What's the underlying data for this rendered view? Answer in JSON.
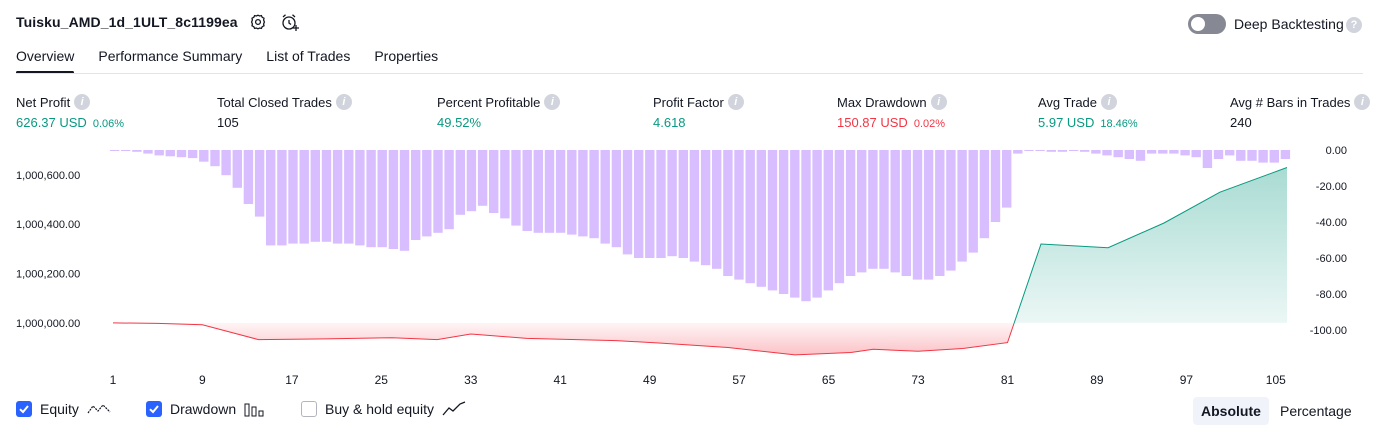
{
  "header": {
    "title": "Tuisku_AMD_1d_1ULT_8c1199ea",
    "settings_icon": "gear-icon",
    "alert_icon": "add-alert-clock-icon",
    "deep_backtesting_label": "Deep Backtesting",
    "deep_backtesting_enabled": false
  },
  "tabs": [
    {
      "label": "Overview",
      "active": true
    },
    {
      "label": "Performance Summary",
      "active": false
    },
    {
      "label": "List of Trades",
      "active": false
    },
    {
      "label": "Properties",
      "active": false
    }
  ],
  "metrics": [
    {
      "label": "Net Profit",
      "value": "626.37 USD",
      "pct": "0.06%",
      "color": "green"
    },
    {
      "label": "Total Closed Trades",
      "value": "105",
      "pct": "",
      "color": "default"
    },
    {
      "label": "Percent Profitable",
      "value": "49.52%",
      "pct": "",
      "color": "green"
    },
    {
      "label": "Profit Factor",
      "value": "4.618",
      "pct": "",
      "color": "green"
    },
    {
      "label": "Max Drawdown",
      "value": "150.87 USD",
      "pct": "0.02%",
      "color": "red"
    },
    {
      "label": "Avg Trade",
      "value": "5.97 USD",
      "pct": "18.46%",
      "color": "green"
    },
    {
      "label": "Avg # Bars in Trades",
      "value": "240",
      "pct": "",
      "color": "default"
    }
  ],
  "chart_data": {
    "type": "line",
    "x_ticks": [
      "1",
      "9",
      "17",
      "25",
      "33",
      "41",
      "49",
      "57",
      "65",
      "73",
      "81",
      "89",
      "97",
      "105"
    ],
    "x_range": [
      1,
      106
    ],
    "left_axis": {
      "ticks": [
        "1,000,600.00",
        "1,000,400.00",
        "1,000,200.00",
        "1,000,000.00"
      ],
      "tick_values": [
        1000600,
        1000400,
        1000200,
        1000000
      ],
      "range": [
        999890,
        1000620
      ]
    },
    "right_axis": {
      "ticks": [
        "0.00",
        "-20.00",
        "-40.00",
        "-60.00",
        "-80.00",
        "-100.00"
      ],
      "tick_values": [
        0,
        -20,
        -40,
        -60,
        -80,
        -100
      ],
      "range": [
        -100,
        0
      ]
    },
    "equity_baseline": 1000000,
    "colors": {
      "equity_pos": "#089981",
      "equity_neg": "#f23645",
      "drawdown_bar": "#d1b3ff"
    },
    "equity": [
      [
        1,
        1000000
      ],
      [
        5,
        999998
      ],
      [
        9,
        999992
      ],
      [
        14,
        999932
      ],
      [
        20,
        999935
      ],
      [
        26,
        999940
      ],
      [
        30,
        999932
      ],
      [
        33,
        999955
      ],
      [
        38,
        999937
      ],
      [
        46,
        999928
      ],
      [
        50,
        999918
      ],
      [
        56,
        999900
      ],
      [
        62,
        999870
      ],
      [
        67,
        999880
      ],
      [
        69,
        999893
      ],
      [
        73,
        999885
      ],
      [
        77,
        999896
      ],
      [
        81,
        999920
      ],
      [
        84,
        1000320
      ],
      [
        90,
        1000305
      ],
      [
        95,
        1000405
      ],
      [
        100,
        1000530
      ],
      [
        106,
        1000630
      ]
    ],
    "drawdown": [
      -0.3,
      -0.5,
      -1,
      -2,
      -3,
      -3.5,
      -4,
      -4.5,
      -6.5,
      -9,
      -14,
      -21,
      -30,
      -37,
      -53,
      -53,
      -52,
      -52,
      -51,
      -51,
      -52,
      -52,
      -53,
      -54,
      -54,
      -55,
      -56,
      -50,
      -48,
      -46,
      -44,
      -36,
      -34,
      -31,
      -35,
      -38,
      -42,
      -45,
      -46,
      -46,
      -46,
      -47,
      -48,
      -49,
      -52,
      -54,
      -58,
      -60,
      -60,
      -60,
      -59,
      -60,
      -62,
      -64,
      -66,
      -70,
      -72,
      -74,
      -76,
      -78,
      -80,
      -82,
      -84,
      -82,
      -78,
      -74,
      -70,
      -68,
      -66,
      -66,
      -68,
      -70,
      -72,
      -72,
      -70,
      -67,
      -62,
      -57,
      -49,
      -40,
      -32,
      -2,
      -0.5,
      -0.5,
      -1,
      -1,
      -0.5,
      -1,
      -2,
      -3,
      -4,
      -5,
      -6,
      -2,
      -2,
      -2,
      -3,
      -4,
      -10,
      -5,
      -3,
      -6,
      -6,
      -7,
      -7,
      -5
    ],
    "series": [
      {
        "name": "Equity"
      },
      {
        "name": "Drawdown"
      }
    ]
  },
  "legend": {
    "equity": {
      "label": "Equity",
      "checked": true,
      "icon": "equity-line-icon"
    },
    "drawdown": {
      "label": "Drawdown",
      "checked": true,
      "icon": "drawdown-bars-icon"
    },
    "buyhold": {
      "label": "Buy & hold equity",
      "checked": false,
      "icon": "buyhold-line-icon"
    }
  },
  "view_toggle": {
    "absolute": "Absolute",
    "percentage": "Percentage",
    "selected": "absolute"
  }
}
